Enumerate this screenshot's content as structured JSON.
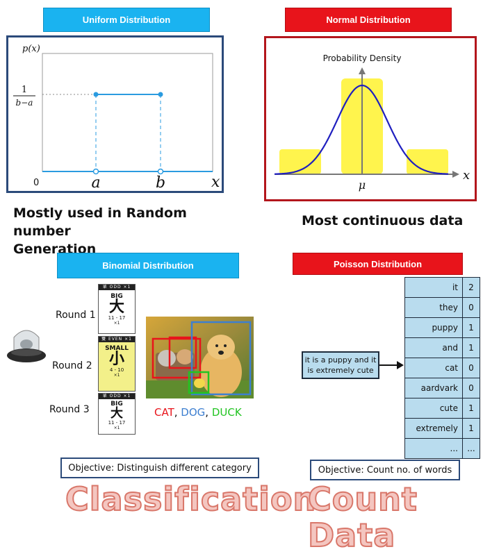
{
  "uniform": {
    "banner": "Uniform Distribution",
    "y_axis_label": "p(x)",
    "frac_num": "1",
    "frac_den": "b−a",
    "origin": "0",
    "a": "a",
    "b": "b",
    "x_axis_label": "x",
    "caption_line1": "Mostly used in Random number",
    "caption_line2": "Generation"
  },
  "normal": {
    "banner": "Normal Distribution",
    "y_axis_label": "Probability Density",
    "mu": "μ",
    "x_axis_label": "x",
    "caption": "Most continuous data"
  },
  "binomial": {
    "banner": "Binomial Distribution",
    "rounds": [
      {
        "label": "Round 1",
        "head": "單 ODD ×1",
        "word": "BIG",
        "kanji": "大",
        "range": "11 - 17",
        "mult": "×1"
      },
      {
        "label": "Round 2",
        "head": "雙 EVEN ×1",
        "word": "SMALL",
        "kanji": "小",
        "range": "4 - 10",
        "mult": "×1"
      },
      {
        "label": "Round 3",
        "head": "單 ODD ×1",
        "word": "BIG",
        "kanji": "大",
        "range": "11 - 17",
        "mult": "×1"
      }
    ],
    "labels": {
      "cat": "CAT",
      "sep1": ", ",
      "dog": "DOG",
      "sep2": ", ",
      "duck": "DUCK"
    },
    "objective": "Objective: Distinguish different category",
    "bigword": "Classification"
  },
  "poisson": {
    "banner": "Poisson Distribution",
    "sentence_line1": "it is a puppy and it",
    "sentence_line2": "is extremely cute",
    "table": [
      {
        "word": "it",
        "count": "2"
      },
      {
        "word": "they",
        "count": "0"
      },
      {
        "word": "puppy",
        "count": "1"
      },
      {
        "word": "and",
        "count": "1"
      },
      {
        "word": "cat",
        "count": "0"
      },
      {
        "word": "aardvark",
        "count": "0"
      },
      {
        "word": "cute",
        "count": "1"
      },
      {
        "word": "extremely",
        "count": "1"
      },
      {
        "word": "...",
        "count": "..."
      }
    ],
    "objective": "Objective: Count no. of words",
    "bigword": "Count Data"
  },
  "colors": {
    "uniform_frame": "#2b4a7a",
    "normal_frame": "#b3161c",
    "curve": "#1f1fbf",
    "highlight": "#fff44d",
    "uniform_line": "#2a9be0",
    "cat": "#e8141b",
    "dog": "#3d7fd0",
    "duck": "#22c422"
  }
}
